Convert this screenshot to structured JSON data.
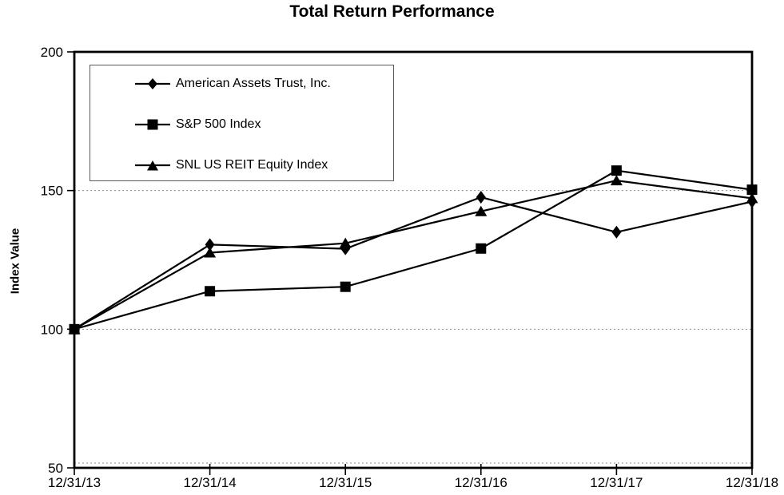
{
  "chart_data": {
    "type": "line",
    "title": "Total Return Performance",
    "ylabel": "Index Value",
    "xlabel": "",
    "categories": [
      "12/31/13",
      "12/31/14",
      "12/31/15",
      "12/31/16",
      "12/31/17",
      "12/31/18"
    ],
    "ylim": [
      50,
      200
    ],
    "yticks": [
      200,
      150,
      100,
      50
    ],
    "gridline_values": [
      150,
      100,
      50
    ],
    "grid": "horizontal-dotted",
    "legend_position": "top-left-inside",
    "series": [
      {
        "name": "American Assets Trust, Inc.",
        "marker": "diamond-marker-icon",
        "color": "#000000",
        "values": [
          100,
          130.5,
          129.0,
          147.6,
          135.0,
          146.0
        ]
      },
      {
        "name": "S&P 500 Index",
        "marker": "square-marker-icon",
        "color": "#000000",
        "values": [
          100,
          113.7,
          115.3,
          129.1,
          157.2,
          150.3
        ]
      },
      {
        "name": "SNL US REIT Equity Index",
        "marker": "triangle-marker-icon",
        "color": "#000000",
        "values": [
          100,
          127.6,
          131.0,
          142.5,
          153.6,
          147.2
        ]
      }
    ],
    "colors": {
      "axis": "#000000",
      "gridline": "#8a8a8a",
      "text": "#000000",
      "background": "#ffffff"
    }
  }
}
